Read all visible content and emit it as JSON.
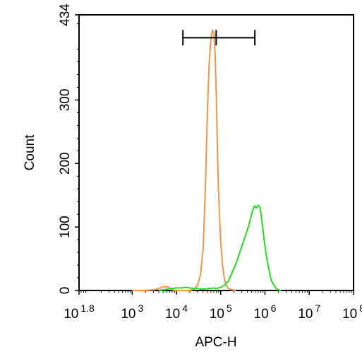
{
  "chart_data": {
    "type": "histogram",
    "title": "",
    "xlabel": "APC-H",
    "ylabel": "Count",
    "x_scale": "log",
    "xlim": [
      63.1,
      100000000
    ],
    "ylim": [
      0,
      434
    ],
    "x_ticks": [
      {
        "value": 63.1,
        "base": "10",
        "exp": "1.8"
      },
      {
        "value": 1000,
        "base": "10",
        "exp": "3"
      },
      {
        "value": 10000,
        "base": "10",
        "exp": "4"
      },
      {
        "value": 100000,
        "base": "10",
        "exp": "5"
      },
      {
        "value": 1000000,
        "base": "10",
        "exp": "6"
      },
      {
        "value": 10000000,
        "base": "10",
        "exp": "7"
      },
      {
        "value": 100000000,
        "base": "10",
        "exp": "8"
      }
    ],
    "y_ticks": [
      {
        "value": 0,
        "label": "0"
      },
      {
        "value": 100,
        "label": "100"
      },
      {
        "value": 200,
        "label": "200"
      },
      {
        "value": 300,
        "label": "300"
      },
      {
        "value": 434,
        "label": "434"
      }
    ],
    "gate": {
      "x_start": 14000,
      "x_mid": 79000,
      "x_end": 590000,
      "y": 398
    },
    "series": [
      {
        "color": "#f0964a",
        "x": [
          1000,
          2000,
          3000,
          4000,
          5000,
          6000,
          7000,
          8000,
          10000,
          13000,
          16000,
          20000,
          25000,
          30000,
          35000,
          40000,
          45000,
          50000,
          55000,
          60000,
          65000,
          70000,
          75000,
          80000,
          85000,
          90000,
          95000,
          100000,
          110000,
          120000,
          130000,
          150000,
          180000,
          220000
        ],
        "y": [
          0,
          0,
          1,
          3,
          6,
          6,
          4,
          1,
          0,
          0,
          0,
          0,
          2,
          8,
          25,
          65,
          160,
          280,
          360,
          395,
          410,
          405,
          370,
          300,
          210,
          150,
          110,
          75,
          40,
          20,
          10,
          3,
          1,
          0
        ]
      },
      {
        "color": "#22dd22",
        "x": [
          4000,
          5000,
          6000,
          7000,
          8000,
          10000,
          13000,
          16000,
          20000,
          25000,
          30000,
          40000,
          50000,
          60000,
          70000,
          80000,
          90000,
          100000,
          120000,
          150000,
          180000,
          220000,
          270000,
          330000,
          400000,
          460000,
          520000,
          580000,
          640000,
          700000,
          760000,
          820000,
          900000,
          1000000,
          1100000,
          1250000,
          1400000,
          1600000,
          1800000,
          2000000,
          2300000
        ],
        "y": [
          0,
          1,
          2,
          3,
          3,
          4,
          4,
          5,
          4,
          3,
          3,
          2,
          3,
          3,
          4,
          3,
          4,
          5,
          8,
          15,
          28,
          42,
          60,
          78,
          95,
          110,
          125,
          133,
          130,
          134,
          132,
          120,
          95,
          70,
          50,
          30,
          15,
          8,
          3,
          1,
          0
        ]
      }
    ]
  }
}
